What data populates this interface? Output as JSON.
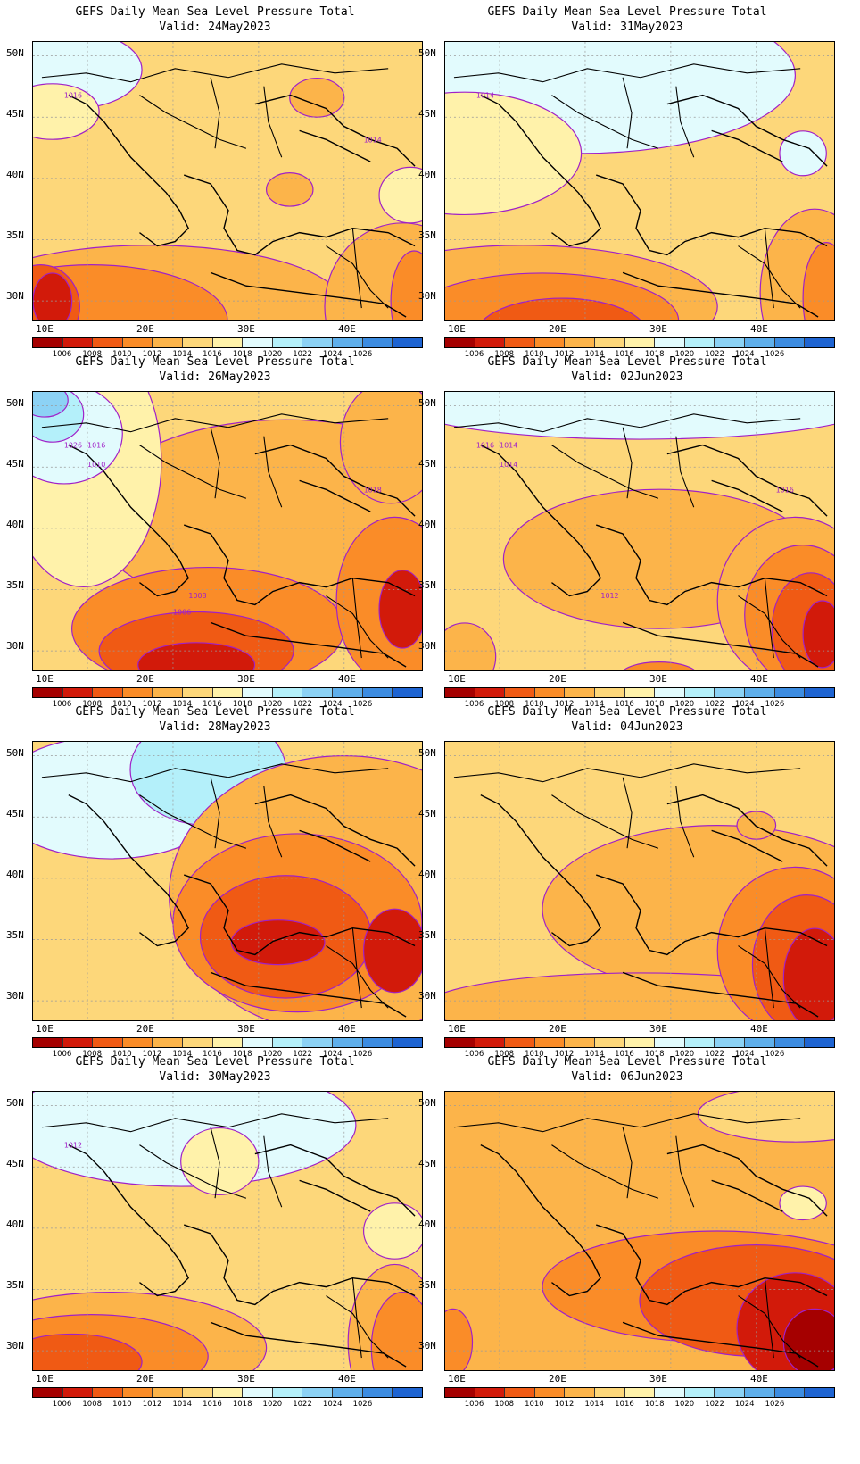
{
  "panels": [
    {
      "title": "GEFS Daily Mean Sea Level Pressure Total",
      "valid": "Valid: 24May2023",
      "contour_labels": [
        "1016",
        "1014"
      ]
    },
    {
      "title": "GEFS Daily Mean Sea Level Pressure Total",
      "valid": "Valid: 31May2023",
      "contour_labels": [
        "1014"
      ]
    },
    {
      "title": "GEFS Daily Mean Sea Level Pressure Total",
      "valid": "Valid: 26May2023",
      "contour_labels": [
        "1026",
        "1018",
        "1016",
        "1010",
        "1008",
        "1006"
      ]
    },
    {
      "title": "GEFS Daily Mean Sea Level Pressure Total",
      "valid": "Valid: 02Jun2023",
      "contour_labels": [
        "1016",
        "1016",
        "1014",
        "1014",
        "1012"
      ]
    },
    {
      "title": "GEFS Daily Mean Sea Level Pressure Total",
      "valid": "Valid: 28May2023",
      "contour_labels": []
    },
    {
      "title": "GEFS Daily Mean Sea Level Pressure Total",
      "valid": "Valid: 04Jun2023",
      "contour_labels": []
    },
    {
      "title": "GEFS Daily Mean Sea Level Pressure Total",
      "valid": "Valid: 30May2023",
      "contour_labels": [
        "1012"
      ]
    },
    {
      "title": "GEFS Daily Mean Sea Level Pressure Total",
      "valid": "Valid: 06Jun2023",
      "contour_labels": []
    }
  ],
  "axes": {
    "lat_labels": [
      "50N",
      "45N",
      "40N",
      "35N",
      "30N"
    ],
    "lon_labels": [
      "10E",
      "20E",
      "30E",
      "40E"
    ]
  },
  "colorbar": {
    "labels": [
      "1006",
      "1008",
      "1010",
      "1012",
      "1014",
      "1016",
      "1018",
      "1020",
      "1022",
      "1024",
      "1026"
    ],
    "colors": [
      "#a50000",
      "#d21a0a",
      "#f05a14",
      "#fa8c28",
      "#fcb44a",
      "#fdd77a",
      "#fff2aa",
      "#e2fbfd",
      "#b4f0fa",
      "#8cd2f5",
      "#5fafeb",
      "#3c8ce1",
      "#1e64d2"
    ]
  },
  "contour_color": "#a020c8"
}
